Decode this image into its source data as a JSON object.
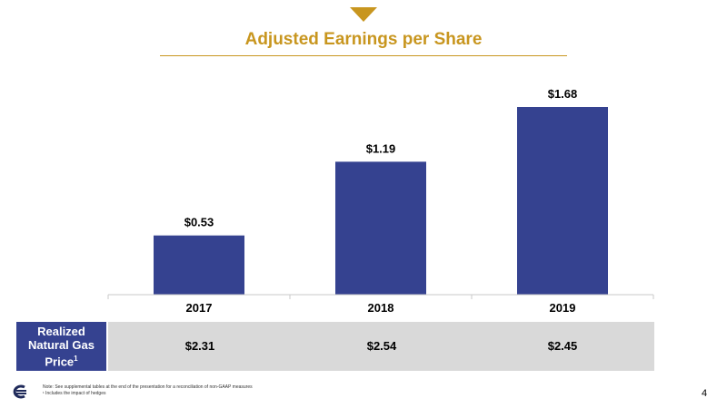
{
  "chart_data": {
    "type": "bar",
    "title": "Adjusted Earnings per Share",
    "categories": [
      "2017",
      "2018",
      "2019"
    ],
    "values": [
      0.53,
      1.19,
      1.68
    ],
    "value_labels": [
      "$0.53",
      "$1.19",
      "$1.68"
    ],
    "bar_color": "#354290",
    "ylim": [
      0,
      1.8
    ],
    "grid": false,
    "legend": "none"
  },
  "price_row": {
    "label_line1": "Realized",
    "label_line2": "Natural Gas",
    "label_line3": "Price",
    "label_sup": "1",
    "values": [
      "$2.31",
      "$2.54",
      "$2.45"
    ]
  },
  "footer": {
    "note1": "Note: See supplemental tables at the end of the presentation for a reconciliation of non-GAAP measures",
    "note2": "¹ Includes the impact of hedges",
    "page_number": "4"
  },
  "colors": {
    "accent": "#c8961f",
    "navy": "#354290",
    "band": "#d9d9d9"
  }
}
